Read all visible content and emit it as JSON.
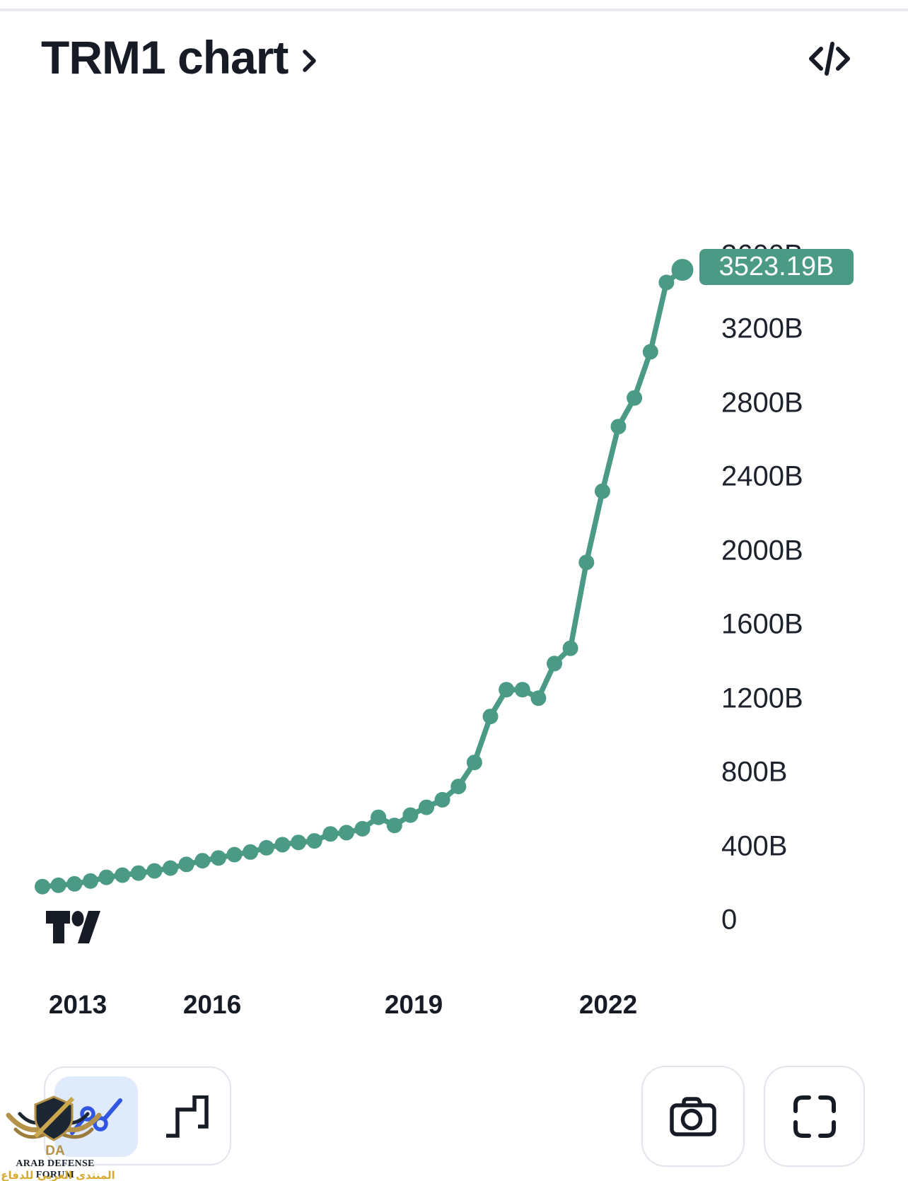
{
  "header": {
    "title": "TRM1 chart",
    "title_chevron_icon": "chevron-right-icon",
    "code_icon": "embed-code-icon"
  },
  "chart_data": {
    "type": "line",
    "title": "TRM1 chart",
    "unit": "B",
    "line_color": "#4a9a86",
    "grid": false,
    "legend": "none",
    "markers": true,
    "ylim": [
      0,
      3700
    ],
    "x_tick_labels": [
      "2013",
      "2016",
      "2019",
      "2022"
    ],
    "y_tick_labels": [
      "0",
      "400B",
      "800B",
      "1200B",
      "1600B",
      "2000B",
      "2400B",
      "2800B",
      "3200B",
      "3600B"
    ],
    "y_tick_values": [
      0,
      400,
      800,
      1200,
      1600,
      2000,
      2400,
      2800,
      3200,
      3600
    ],
    "values": [
      185,
      192,
      200,
      215,
      235,
      247,
      258,
      270,
      285,
      305,
      325,
      340,
      358,
      372,
      395,
      412,
      424,
      432,
      470,
      477,
      498,
      560,
      516,
      572,
      614,
      655,
      727,
      857,
      1106,
      1251,
      1251,
      1205,
      1392,
      1475,
      1940,
      2325,
      2675,
      2830,
      3080,
      3455,
      3523.19
    ],
    "last_value_label": "3523.19B"
  },
  "toolbar": {
    "line_chart_button_icon": "line-chart-icon",
    "step_chart_button_icon": "step-chart-icon",
    "camera_button_icon": "camera-icon",
    "fullscreen_button_icon": "fullscreen-icon",
    "selected_chart_type": "line",
    "selected_bg_color": "#dfeafb",
    "icon_accent_color": "#3156e2"
  },
  "branding": {
    "logo_icon": "tradingview-logo"
  },
  "watermark": {
    "monogram": "DA",
    "line1": "ARAB DEFENSE FORUM",
    "line2": "المنتدى العربي للدفاع والتسليح"
  }
}
